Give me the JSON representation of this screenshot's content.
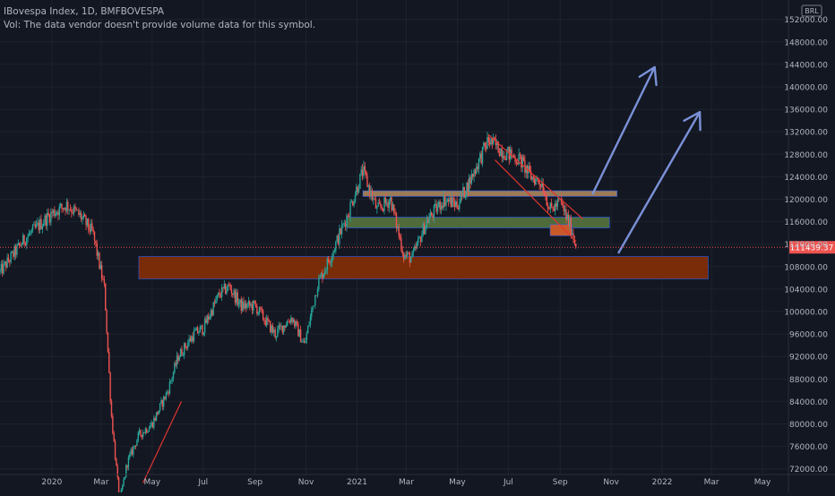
{
  "header": {
    "symbol_line": "IBovespa Index, 1D, BMFBOVESPA",
    "volume_note": "Vol: The data vendor doesn't provide volume data for this symbol."
  },
  "currency_badge": "BRL",
  "last_price": "111439.37",
  "chart_data": {
    "type": "candlestick",
    "y_ticks": [
      "72000.00",
      "76000.00",
      "80000.00",
      "84000.00",
      "88000.00",
      "92000.00",
      "96000.00",
      "100000.00",
      "104000.00",
      "108000.00",
      "112000.00",
      "116000.00",
      "120000.00",
      "124000.00",
      "128000.00",
      "132000.00",
      "136000.00",
      "140000.00",
      "144000.00",
      "148000.00",
      "152000.00"
    ],
    "ylim": [
      71000,
      154500
    ],
    "x_ticks": [
      "2020",
      "Mar",
      "May",
      "Jul",
      "Sep",
      "Nov",
      "2021",
      "Mar",
      "May",
      "Jul",
      "Sep",
      "Nov",
      "2022",
      "Mar",
      "May"
    ],
    "x_tick_dates": [
      "2020-01-02",
      "2020-03-01",
      "2020-05-01",
      "2020-07-01",
      "2020-09-01",
      "2020-11-01",
      "2021-01-01",
      "2021-03-01",
      "2021-05-01",
      "2021-07-01",
      "2021-09-01",
      "2021-11-01",
      "2022-01-01",
      "2022-03-01",
      "2022-05-01"
    ],
    "xlim": [
      "2019-11-01",
      "2022-06-01"
    ],
    "price_path": [
      [
        "2019-11-01",
        107000
      ],
      [
        "2019-12-01",
        113000
      ],
      [
        "2020-01-02",
        117500
      ],
      [
        "2020-01-20",
        119000
      ],
      [
        "2020-02-05",
        117000
      ],
      [
        "2020-02-20",
        114000
      ],
      [
        "2020-03-05",
        104000
      ],
      [
        "2020-03-13",
        82000
      ],
      [
        "2020-03-23",
        66000
      ],
      [
        "2020-04-01",
        73000
      ],
      [
        "2020-04-15",
        78000
      ],
      [
        "2020-05-01",
        80000
      ],
      [
        "2020-05-20",
        86000
      ],
      [
        "2020-06-01",
        92000
      ],
      [
        "2020-06-20",
        96000
      ],
      [
        "2020-07-01",
        97000
      ],
      [
        "2020-07-20",
        103000
      ],
      [
        "2020-08-01",
        104500
      ],
      [
        "2020-08-15",
        101000
      ],
      [
        "2020-09-01",
        101000
      ],
      [
        "2020-09-25",
        96000
      ],
      [
        "2020-10-15",
        99000
      ],
      [
        "2020-10-30",
        94000
      ],
      [
        "2020-11-15",
        105000
      ],
      [
        "2020-12-01",
        110000
      ],
      [
        "2020-12-20",
        117000
      ],
      [
        "2021-01-08",
        125000
      ],
      [
        "2021-01-25",
        118000
      ],
      [
        "2021-02-10",
        120000
      ],
      [
        "2021-02-26",
        110000
      ],
      [
        "2021-03-08",
        109500
      ],
      [
        "2021-03-25",
        116000
      ],
      [
        "2021-04-15",
        120000
      ],
      [
        "2021-05-01",
        119000
      ],
      [
        "2021-05-15",
        123000
      ],
      [
        "2021-06-07",
        130500
      ],
      [
        "2021-06-25",
        128500
      ],
      [
        "2021-07-15",
        127000
      ],
      [
        "2021-07-28",
        124000
      ],
      [
        "2021-08-10",
        123000
      ],
      [
        "2021-08-20",
        118000
      ],
      [
        "2021-09-01",
        119500
      ],
      [
        "2021-09-15",
        114500
      ],
      [
        "2021-09-20",
        111439.37
      ]
    ],
    "zones": [
      {
        "name": "upper-resistance-zone",
        "from": "2021-01-08",
        "to": "2021-11-08",
        "y1": 120500,
        "y2": 121500,
        "fill": "#9c7a57"
      },
      {
        "name": "middle-support-zone",
        "from": "2020-12-20",
        "to": "2021-10-30",
        "y1": 114900,
        "y2": 116800,
        "fill": "#4f6b3c"
      },
      {
        "name": "lower-demand-zone",
        "from": "2020-04-15",
        "to": "2022-02-25",
        "y1": 105800,
        "y2": 109800,
        "fill": "#7a2c09"
      },
      {
        "name": "small-orange-zone",
        "from": "2021-08-20",
        "to": "2021-09-15",
        "y1": 113500,
        "y2": 115500,
        "fill": "#c85a2a"
      }
    ],
    "trend_lines": [
      {
        "name": "downtrend-channel-upper",
        "points": [
          [
            "2021-06-07",
            131500
          ],
          [
            "2021-09-28",
            116500
          ]
        ],
        "color": "#e0342f"
      },
      {
        "name": "downtrend-channel-lower",
        "points": [
          [
            "2021-06-15",
            127000
          ],
          [
            "2021-09-20",
            112500
          ]
        ],
        "color": "#e0342f"
      },
      {
        "name": "covid-recovery-line",
        "points": [
          [
            "2020-04-20",
            69500
          ],
          [
            "2020-06-05",
            84000
          ]
        ],
        "color": "#e0342f"
      }
    ],
    "arrows": [
      {
        "name": "bullish-projection-arrow-1",
        "points": [
          [
            "2021-10-10",
            121000
          ],
          [
            "2021-12-23",
            143500
          ]
        ],
        "color": "#7a91d8"
      },
      {
        "name": "bullish-projection-arrow-2",
        "points": [
          [
            "2021-11-10",
            110500
          ],
          [
            "2022-02-15",
            135500
          ]
        ],
        "color": "#7a91d8"
      }
    ],
    "last_price_value": 111439.37,
    "colors": {
      "up": "#26a69a",
      "down": "#ef5350",
      "grid": "#1e222d",
      "axis_text": "#b2b5be",
      "price_line": "#ef5350",
      "price_label_bg": "#ef5350"
    }
  }
}
